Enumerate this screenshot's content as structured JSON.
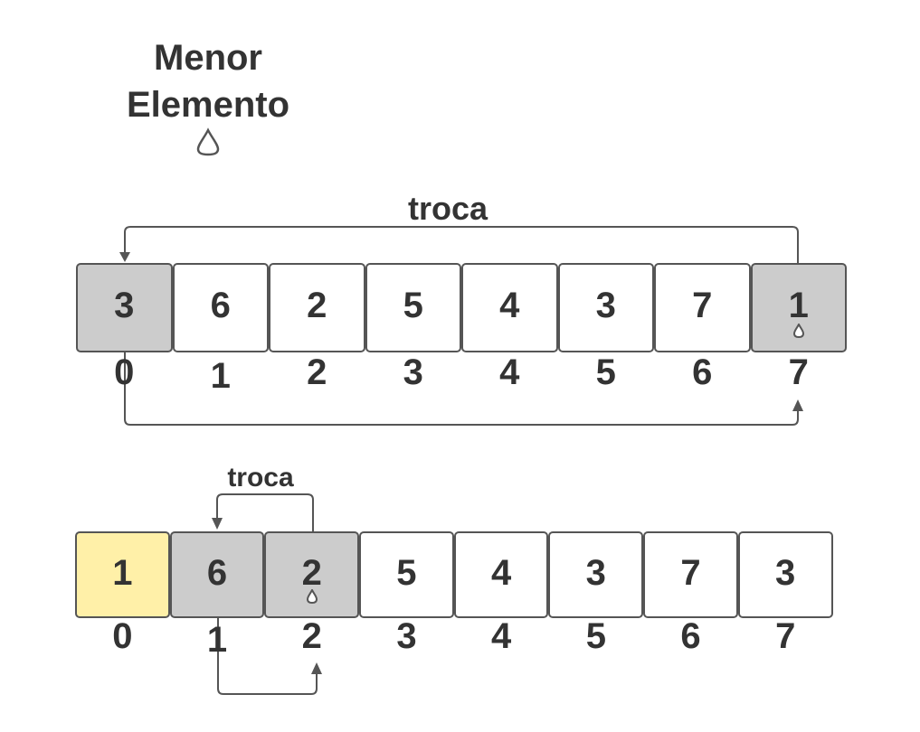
{
  "legend": {
    "line1": "Menor",
    "line2": "Elemento",
    "icon": "drop-marker-icon"
  },
  "colors": {
    "selected": "#cccccc",
    "sorted": "#fff0a8",
    "default": "#ffffff",
    "stroke": "#555555",
    "text": "#333333"
  },
  "steps": [
    {
      "swap_label": "troca",
      "values": [
        "3",
        "6",
        "2",
        "5",
        "4",
        "3",
        "7",
        "1"
      ],
      "indices": [
        "0",
        "1",
        "2",
        "3",
        "4",
        "5",
        "6",
        "7"
      ],
      "swap": [
        0,
        7
      ],
      "min_index": 7,
      "sorted_upto": -1
    },
    {
      "swap_label": "troca",
      "values": [
        "1",
        "6",
        "2",
        "5",
        "4",
        "3",
        "7",
        "3"
      ],
      "indices": [
        "0",
        "1",
        "2",
        "3",
        "4",
        "5",
        "6",
        "7"
      ],
      "swap": [
        1,
        2
      ],
      "min_index": 2,
      "sorted_upto": 0
    }
  ]
}
